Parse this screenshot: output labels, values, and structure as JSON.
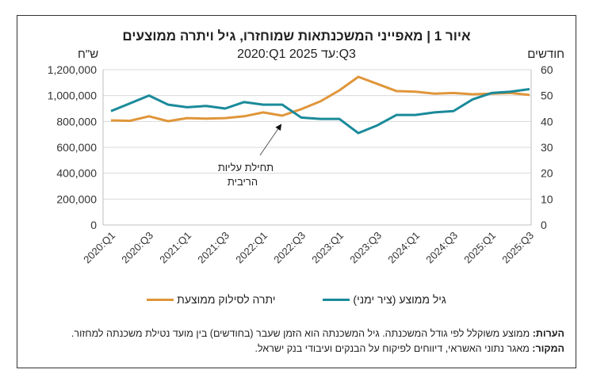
{
  "chart_data": {
    "type": "line",
    "title": "איור 1 | מאפייני המשכנתאות שמוחזרו, גיל ויתרה ממוצעים",
    "subtitle": "2020:Q1 עד 2025:Q3",
    "ylabel_left": "ש\"ח",
    "ylabel_right": "חודשים",
    "ylim_left": [
      0,
      1200000
    ],
    "ylim_right": [
      0,
      60
    ],
    "yticks_left": [
      "0",
      "200,000",
      "400,000",
      "600,000",
      "800,000",
      "1,000,000",
      "1,200,000"
    ],
    "yticks_right": [
      "0",
      "10",
      "20",
      "30",
      "40",
      "50",
      "60"
    ],
    "x": [
      "2020:Q1",
      "2020:Q2",
      "2020:Q3",
      "2020:Q4",
      "2021:Q1",
      "2021:Q2",
      "2021:Q3",
      "2021:Q4",
      "2022:Q1",
      "2022:Q2",
      "2022:Q3",
      "2022:Q4",
      "2023:Q1",
      "2023:Q2",
      "2023:Q3",
      "2023:Q4",
      "2024:Q1",
      "2024:Q2",
      "2024:Q3",
      "2024:Q4",
      "2025:Q1",
      "2025:Q2",
      "2025:Q3"
    ],
    "xtick_labels": [
      "2020:Q1",
      "2020:Q3",
      "2021:Q1",
      "2021:Q3",
      "2022:Q1",
      "2022:Q3",
      "2023:Q1",
      "2023:Q3",
      "2024:Q1",
      "2024:Q3",
      "2025:Q1",
      "2025:Q3"
    ],
    "series": [
      {
        "name": "יתרה לסילוק ממוצעת",
        "axis": "left",
        "color": "#E0963A",
        "values": [
          808000,
          805000,
          840000,
          802000,
          826000,
          822000,
          826000,
          840000,
          870000,
          845000,
          895000,
          955000,
          1040000,
          1145000,
          1090000,
          1035000,
          1030000,
          1015000,
          1020000,
          1010000,
          1015000,
          1020000,
          1005000
        ]
      },
      {
        "name": "גיל ממוצע (ציר ימני)",
        "axis": "right",
        "color": "#1A8A9A",
        "values": [
          44,
          47,
          50,
          46.5,
          45.5,
          46,
          45,
          47.5,
          46.5,
          46.5,
          41.5,
          41,
          41,
          35.5,
          38.5,
          42.5,
          42.5,
          43.5,
          44,
          48.5,
          51,
          51.5,
          52.5
        ]
      }
    ],
    "annotation": {
      "line1": "תחילת עליות",
      "line2": "הריבית",
      "x": "2022:Q2"
    },
    "grid": true,
    "legend": "bottom"
  },
  "notes": {
    "label1": "הערות:",
    "text1": " ממוצע משוקלל לפי גודל המשכנתה. גיל המשכנתה הוא הזמן שעבר (בחודשים) בין מועד נטילת משכנתה למחזור.",
    "label2": "המקור:",
    "text2": " מאגר נתוני האשראי, דיווחים לפיקוח על הבנקים ועיבודי בנק ישראל."
  }
}
